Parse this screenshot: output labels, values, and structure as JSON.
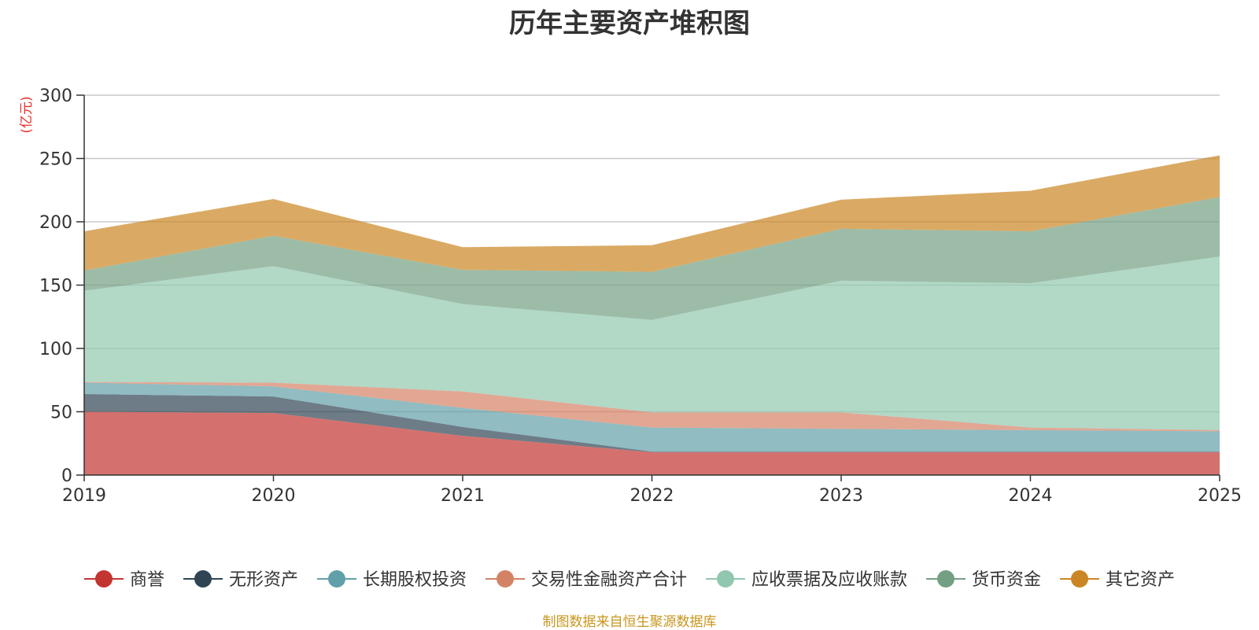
{
  "chart_data": {
    "type": "area",
    "stacked": true,
    "title": "历年主要资产堆积图",
    "unit_label": "(亿元)",
    "categories": [
      "2019",
      "2020",
      "2021",
      "2022",
      "2023",
      "2024",
      "2025"
    ],
    "ylim": [
      0,
      300
    ],
    "yticks": [
      0,
      50,
      100,
      150,
      200,
      250,
      300
    ],
    "grid": true,
    "legend_position": "bottom",
    "series": [
      {
        "name": "商誉",
        "color": "#c23531",
        "values": [
          50,
          49,
          31,
          18,
          18,
          18,
          18
        ]
      },
      {
        "name": "无形资产",
        "color": "#2f4554",
        "values": [
          14,
          13,
          7,
          0.5,
          0.5,
          0.5,
          0.5
        ]
      },
      {
        "name": "长期股权投资",
        "color": "#61a0a8",
        "values": [
          9,
          8,
          15,
          19,
          18,
          17,
          16
        ]
      },
      {
        "name": "交易性金融资产合计",
        "color": "#d48265",
        "values": [
          0.5,
          3,
          13,
          12,
          13,
          2,
          1
        ]
      },
      {
        "name": "应收票据及应收账款",
        "color": "#91c7ae",
        "values": [
          72,
          92,
          69,
          73,
          104,
          114,
          137
        ]
      },
      {
        "name": "货币资金",
        "color": "#749f83",
        "values": [
          16,
          24,
          27,
          38,
          41,
          41,
          47
        ]
      },
      {
        "name": "其它资产",
        "color": "#ca8622",
        "values": [
          31,
          29,
          18,
          21,
          23,
          32,
          33
        ]
      }
    ]
  },
  "source_note": "制图数据来自恒生聚源数据库"
}
